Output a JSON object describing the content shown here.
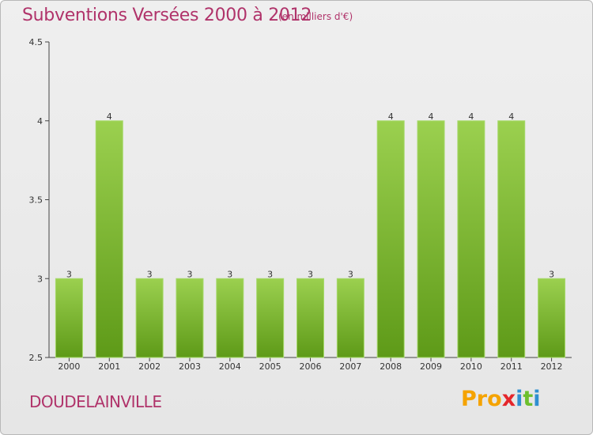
{
  "header": {
    "title": "Subventions Versées 2000 à 2012",
    "unit": "(en milliers d'€)"
  },
  "footer": {
    "city": "DOUDELAINVILLE",
    "logo_letters": [
      "P",
      "r",
      "o",
      "x",
      "i",
      "t",
      "i"
    ]
  },
  "colors": {
    "title": "#b0336a",
    "bar_top": "#9bd04f",
    "bar_bottom": "#5e9a18",
    "logo": [
      "#f5a300",
      "#f5a300",
      "#f5a300",
      "#e4262b",
      "#2f8fd0",
      "#6cbf2d",
      "#2f8fd0"
    ]
  },
  "chart_data": {
    "type": "bar",
    "categories": [
      "2000",
      "2001",
      "2002",
      "2003",
      "2004",
      "2005",
      "2006",
      "2007",
      "2008",
      "2009",
      "2010",
      "2011",
      "2012"
    ],
    "values": [
      3,
      4,
      3,
      3,
      3,
      3,
      3,
      3,
      4,
      4,
      4,
      4,
      3
    ],
    "data_labels": [
      "3",
      "4",
      "3",
      "3",
      "3",
      "3",
      "3",
      "3",
      "4",
      "4",
      "4",
      "4",
      "3"
    ],
    "ylim": [
      2.5,
      4.5
    ],
    "yticks": [
      2.5,
      3,
      3.5,
      4,
      4.5
    ],
    "ytick_labels": [
      "2.5",
      "3",
      "3.5",
      "4",
      "4.5"
    ],
    "grid": false
  }
}
